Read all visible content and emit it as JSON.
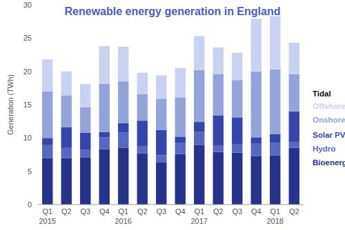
{
  "chart_data": {
    "type": "bar",
    "stacked": true,
    "title": "Renewable energy generation in England",
    "y_label": "Generation (TWh)",
    "categories": [
      "Q1\n2015",
      "Q2",
      "Q3",
      "Q4",
      "Q1\n2016",
      "Q2",
      "Q3",
      "Q4",
      "Q1\n2017",
      "Q2",
      "Q3",
      "Q4",
      "Q1\n2018",
      "Q2"
    ],
    "series": [
      {
        "name": "Bioenergy",
        "color": "#27328c",
        "values": [
          7.0,
          7.0,
          7.1,
          8.3,
          8.5,
          7.7,
          6.3,
          7.6,
          8.9,
          7.9,
          7.8,
          7.3,
          7.4,
          8.5
        ]
      },
      {
        "name": "Hydro",
        "color": "#5868c2",
        "values": [
          2.0,
          1.5,
          1.1,
          1.8,
          2.3,
          1.1,
          1.1,
          1.7,
          2.0,
          1.0,
          1.3,
          1.9,
          1.9,
          0.9
        ]
      },
      {
        "name": "Solar PV",
        "color": "#3445ad",
        "values": [
          1.0,
          3.1,
          2.6,
          0.8,
          1.4,
          3.8,
          3.8,
          0.9,
          1.5,
          4.5,
          4.0,
          0.9,
          1.3,
          4.6
        ]
      },
      {
        "name": "Onshore wind",
        "color": "#95a3dd",
        "values": [
          7.0,
          4.8,
          3.8,
          7.2,
          6.3,
          4.0,
          4.7,
          5.9,
          7.8,
          6.2,
          5.6,
          9.9,
          9.7,
          5.6
        ]
      },
      {
        "name": "Offshore wind",
        "color": "#c9d2f0",
        "values": [
          4.8,
          3.6,
          3.5,
          5.7,
          5.2,
          3.2,
          3.5,
          4.4,
          5.1,
          4.0,
          4.1,
          7.9,
          8.0,
          4.7
        ]
      },
      {
        "name": "Tidal",
        "color": "#111111",
        "values": [
          0,
          0,
          0,
          0,
          0,
          0,
          0,
          0,
          0,
          0,
          0,
          0,
          0,
          0
        ]
      }
    ],
    "ylim": [
      0,
      30
    ],
    "yticks": [
      0,
      5,
      10,
      15,
      20,
      25,
      30
    ],
    "grid": false,
    "legend": "right"
  }
}
